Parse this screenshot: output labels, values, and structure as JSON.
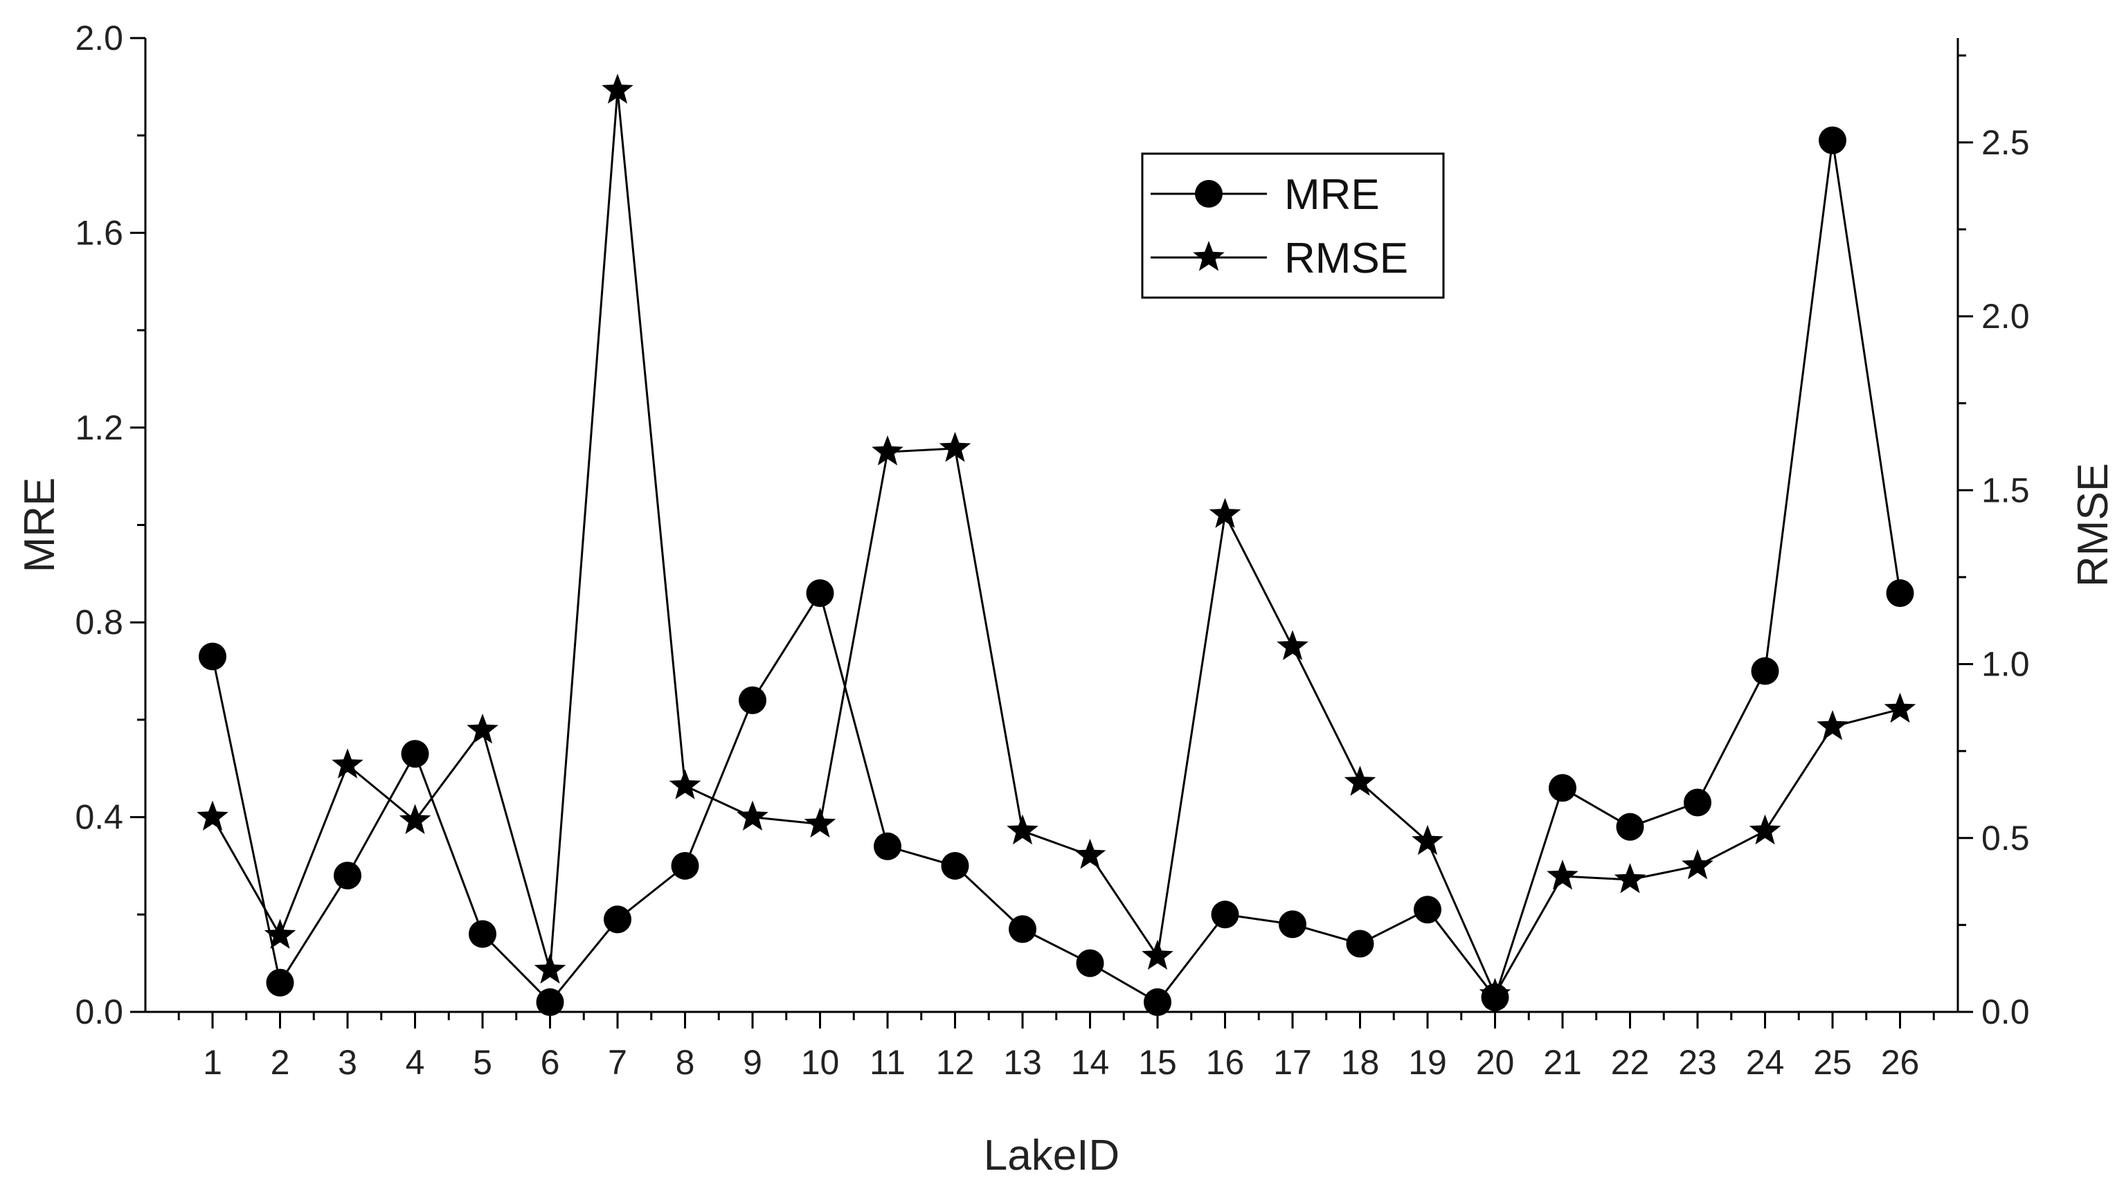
{
  "chart_data": {
    "type": "line",
    "xlabel": "LakeID",
    "ylabel_left": "MRE",
    "ylabel_right": "RMSE",
    "x": [
      1,
      2,
      3,
      4,
      5,
      6,
      7,
      8,
      9,
      10,
      11,
      12,
      13,
      14,
      15,
      16,
      17,
      18,
      19,
      20,
      21,
      22,
      23,
      24,
      25,
      26
    ],
    "x_tick_labels": [
      "1",
      "2",
      "3",
      "4",
      "5",
      "6",
      "7",
      "8",
      "9",
      "10",
      "11",
      "12",
      "13",
      "14",
      "15",
      "16",
      "17",
      "18",
      "19",
      "20",
      "21",
      "22",
      "23",
      "24",
      "25",
      "26"
    ],
    "ylim_left": [
      0,
      2.0
    ],
    "ylim_right": [
      0,
      2.8
    ],
    "y_ticks_left": [
      "0.0",
      "0.4",
      "0.8",
      "1.2",
      "1.6",
      "2.0"
    ],
    "y_ticks_right": [
      "0.0",
      "0.5",
      "1.0",
      "1.5",
      "2.0",
      "2.5"
    ],
    "grid": false,
    "legend_position": "top-right",
    "series": [
      {
        "name": "MRE",
        "axis": "left",
        "marker": "circle",
        "values": [
          0.73,
          0.06,
          0.28,
          0.53,
          0.16,
          0.02,
          0.19,
          0.3,
          0.64,
          0.86,
          0.34,
          0.3,
          0.17,
          0.1,
          0.02,
          0.2,
          0.18,
          0.14,
          0.21,
          0.03,
          0.46,
          0.38,
          0.43,
          0.7,
          1.79,
          0.86
        ]
      },
      {
        "name": "RMSE",
        "axis": "right",
        "marker": "star",
        "values": [
          0.56,
          0.22,
          0.71,
          0.55,
          0.81,
          0.12,
          2.65,
          0.65,
          0.56,
          0.54,
          1.61,
          1.62,
          0.52,
          0.45,
          0.16,
          1.43,
          1.05,
          0.66,
          0.49,
          0.05,
          0.39,
          0.38,
          0.42,
          0.52,
          0.82,
          0.87
        ]
      }
    ]
  }
}
